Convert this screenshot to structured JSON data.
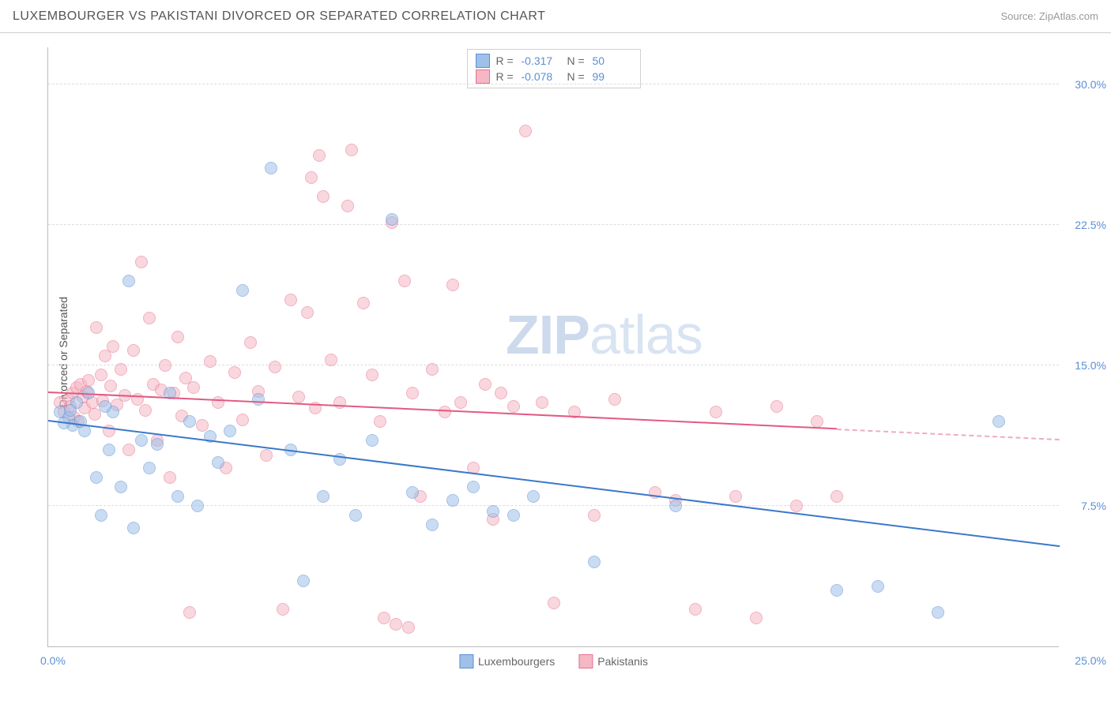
{
  "header": {
    "title": "LUXEMBOURGER VS PAKISTANI DIVORCED OR SEPARATED CORRELATION CHART",
    "source_prefix": "Source: ",
    "source": "ZipAtlas.com"
  },
  "watermark": {
    "part1": "ZIP",
    "part2": "atlas"
  },
  "chart": {
    "type": "scatter",
    "ylabel": "Divorced or Separated",
    "xlim": [
      0,
      25
    ],
    "ylim": [
      0,
      32
    ],
    "xtick_labels": {
      "min": "0.0%",
      "max": "25.0%"
    },
    "ytick_values": [
      7.5,
      15.0,
      22.5,
      30.0
    ],
    "ytick_labels": [
      "7.5%",
      "15.0%",
      "22.5%",
      "30.0%"
    ],
    "grid_color": "#dddddd",
    "axis_color": "#bbbbbb",
    "background_color": "#ffffff",
    "tick_label_color": "#5b8fd6",
    "marker_radius": 8,
    "marker_opacity": 0.55,
    "marker_border_width": 1,
    "series": [
      {
        "name": "Luxembourgers",
        "fill_color": "#9fc0e8",
        "stroke_color": "#5b8fd6",
        "line_color": "#3b78c9",
        "r_value": "-0.317",
        "n_value": "50",
        "trend": {
          "x1": 0,
          "y1": 12.0,
          "x2": 25,
          "y2": 5.3,
          "dash_from_x": null
        },
        "points": [
          [
            0.3,
            12.5
          ],
          [
            0.5,
            12.2
          ],
          [
            0.6,
            11.8
          ],
          [
            0.7,
            13.0
          ],
          [
            0.8,
            12.0
          ],
          [
            0.9,
            11.5
          ],
          [
            1.2,
            9.0
          ],
          [
            1.3,
            7.0
          ],
          [
            1.5,
            10.5
          ],
          [
            1.6,
            12.5
          ],
          [
            1.8,
            8.5
          ],
          [
            2.0,
            19.5
          ],
          [
            2.1,
            6.3
          ],
          [
            2.3,
            11.0
          ],
          [
            2.5,
            9.5
          ],
          [
            2.7,
            10.8
          ],
          [
            3.0,
            13.5
          ],
          [
            3.2,
            8.0
          ],
          [
            3.5,
            12.0
          ],
          [
            3.7,
            7.5
          ],
          [
            4.0,
            11.2
          ],
          [
            4.2,
            9.8
          ],
          [
            4.5,
            11.5
          ],
          [
            4.8,
            19.0
          ],
          [
            5.2,
            13.2
          ],
          [
            5.5,
            25.5
          ],
          [
            6.0,
            10.5
          ],
          [
            6.3,
            3.5
          ],
          [
            6.8,
            8.0
          ],
          [
            7.2,
            10.0
          ],
          [
            7.6,
            7.0
          ],
          [
            8.0,
            11.0
          ],
          [
            8.5,
            22.8
          ],
          [
            9.0,
            8.2
          ],
          [
            9.5,
            6.5
          ],
          [
            10.0,
            7.8
          ],
          [
            10.5,
            8.5
          ],
          [
            11.0,
            7.2
          ],
          [
            11.5,
            7.0
          ],
          [
            12.0,
            8.0
          ],
          [
            13.5,
            4.5
          ],
          [
            15.5,
            7.5
          ],
          [
            19.5,
            3.0
          ],
          [
            20.5,
            3.2
          ],
          [
            22.0,
            1.8
          ],
          [
            23.5,
            12.0
          ],
          [
            1.0,
            13.5
          ],
          [
            1.4,
            12.8
          ],
          [
            0.4,
            11.9
          ],
          [
            0.55,
            12.6
          ]
        ]
      },
      {
        "name": "Pakistanis",
        "fill_color": "#f5b7c4",
        "stroke_color": "#e8708f",
        "line_color": "#e25a82",
        "r_value": "-0.078",
        "n_value": "99",
        "trend": {
          "x1": 0,
          "y1": 13.5,
          "x2": 25,
          "y2": 11.0,
          "dash_from_x": 19.5
        },
        "points": [
          [
            0.3,
            13.0
          ],
          [
            0.4,
            12.5
          ],
          [
            0.5,
            13.2
          ],
          [
            0.55,
            12.8
          ],
          [
            0.6,
            13.5
          ],
          [
            0.65,
            12.2
          ],
          [
            0.7,
            13.8
          ],
          [
            0.75,
            12.0
          ],
          [
            0.8,
            14.0
          ],
          [
            0.85,
            13.3
          ],
          [
            0.9,
            12.7
          ],
          [
            0.95,
            13.6
          ],
          [
            1.0,
            14.2
          ],
          [
            1.1,
            13.0
          ],
          [
            1.15,
            12.4
          ],
          [
            1.2,
            17.0
          ],
          [
            1.3,
            14.5
          ],
          [
            1.35,
            13.1
          ],
          [
            1.4,
            15.5
          ],
          [
            1.5,
            11.5
          ],
          [
            1.55,
            13.9
          ],
          [
            1.6,
            16.0
          ],
          [
            1.7,
            12.9
          ],
          [
            1.8,
            14.8
          ],
          [
            1.9,
            13.4
          ],
          [
            2.0,
            10.5
          ],
          [
            2.1,
            15.8
          ],
          [
            2.2,
            13.2
          ],
          [
            2.3,
            20.5
          ],
          [
            2.4,
            12.6
          ],
          [
            2.5,
            17.5
          ],
          [
            2.6,
            14.0
          ],
          [
            2.7,
            11.0
          ],
          [
            2.8,
            13.7
          ],
          [
            2.9,
            15.0
          ],
          [
            3.0,
            9.0
          ],
          [
            3.1,
            13.5
          ],
          [
            3.2,
            16.5
          ],
          [
            3.3,
            12.3
          ],
          [
            3.4,
            14.3
          ],
          [
            3.5,
            1.8
          ],
          [
            3.6,
            13.8
          ],
          [
            3.8,
            11.8
          ],
          [
            4.0,
            15.2
          ],
          [
            4.2,
            13.0
          ],
          [
            4.4,
            9.5
          ],
          [
            4.6,
            14.6
          ],
          [
            4.8,
            12.1
          ],
          [
            5.0,
            16.2
          ],
          [
            5.2,
            13.6
          ],
          [
            5.4,
            10.2
          ],
          [
            5.6,
            14.9
          ],
          [
            5.8,
            2.0
          ],
          [
            6.0,
            18.5
          ],
          [
            6.2,
            13.3
          ],
          [
            6.4,
            17.8
          ],
          [
            6.5,
            25.0
          ],
          [
            6.6,
            12.7
          ],
          [
            6.7,
            26.2
          ],
          [
            6.8,
            24.0
          ],
          [
            7.0,
            15.3
          ],
          [
            7.2,
            13.0
          ],
          [
            7.4,
            23.5
          ],
          [
            7.5,
            26.5
          ],
          [
            7.8,
            18.3
          ],
          [
            8.0,
            14.5
          ],
          [
            8.2,
            12.0
          ],
          [
            8.3,
            1.5
          ],
          [
            8.5,
            22.6
          ],
          [
            8.6,
            1.2
          ],
          [
            8.8,
            19.5
          ],
          [
            8.9,
            1.0
          ],
          [
            9.0,
            13.5
          ],
          [
            9.2,
            8.0
          ],
          [
            9.5,
            14.8
          ],
          [
            9.8,
            12.5
          ],
          [
            10.0,
            19.3
          ],
          [
            10.2,
            13.0
          ],
          [
            10.5,
            9.5
          ],
          [
            10.8,
            14.0
          ],
          [
            11.0,
            6.8
          ],
          [
            11.2,
            13.5
          ],
          [
            11.5,
            12.8
          ],
          [
            11.8,
            27.5
          ],
          [
            12.2,
            13.0
          ],
          [
            12.5,
            2.3
          ],
          [
            13.0,
            12.5
          ],
          [
            13.5,
            7.0
          ],
          [
            14.0,
            13.2
          ],
          [
            15.0,
            8.2
          ],
          [
            15.5,
            7.8
          ],
          [
            16.0,
            2.0
          ],
          [
            16.5,
            12.5
          ],
          [
            17.0,
            8.0
          ],
          [
            17.5,
            1.5
          ],
          [
            18.0,
            12.8
          ],
          [
            18.5,
            7.5
          ],
          [
            19.0,
            12.0
          ],
          [
            19.5,
            8.0
          ]
        ]
      }
    ],
    "bottom_legend": [
      {
        "label": "Luxembourgers",
        "series_index": 0
      },
      {
        "label": "Pakistanis",
        "series_index": 1
      }
    ]
  }
}
